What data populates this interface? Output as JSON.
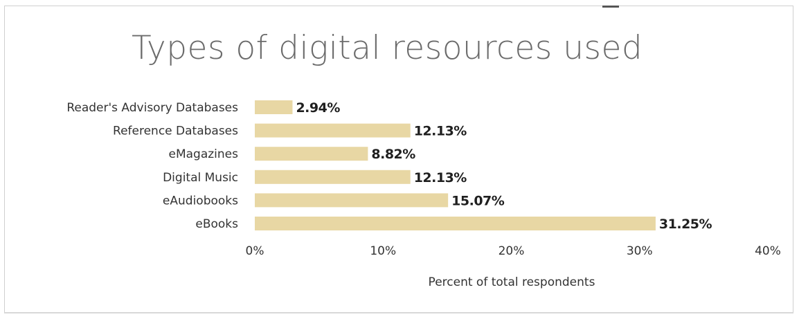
{
  "chart_data": {
    "type": "bar",
    "orientation": "horizontal",
    "title": "Types of digital resources used",
    "categories": [
      "Reader's Advisory Databases",
      "Reference Databases",
      "eMagazines",
      "Digital Music",
      "eAudiobooks",
      "eBooks"
    ],
    "values": [
      2.94,
      12.13,
      8.82,
      12.13,
      15.07,
      31.25
    ],
    "value_labels": [
      "2.94%",
      "12.13%",
      "8.82%",
      "12.13%",
      "15.07%",
      "31.25%"
    ],
    "xlabel": "Percent of total respondents",
    "ylabel": "",
    "xlim": [
      0,
      40
    ],
    "x_ticks": [
      0,
      10,
      20,
      30,
      40
    ],
    "x_tick_labels": [
      "0%",
      "10%",
      "20%",
      "30%",
      "40%"
    ],
    "bar_color": "#e8d7a4",
    "grid": false,
    "legend": "none"
  }
}
